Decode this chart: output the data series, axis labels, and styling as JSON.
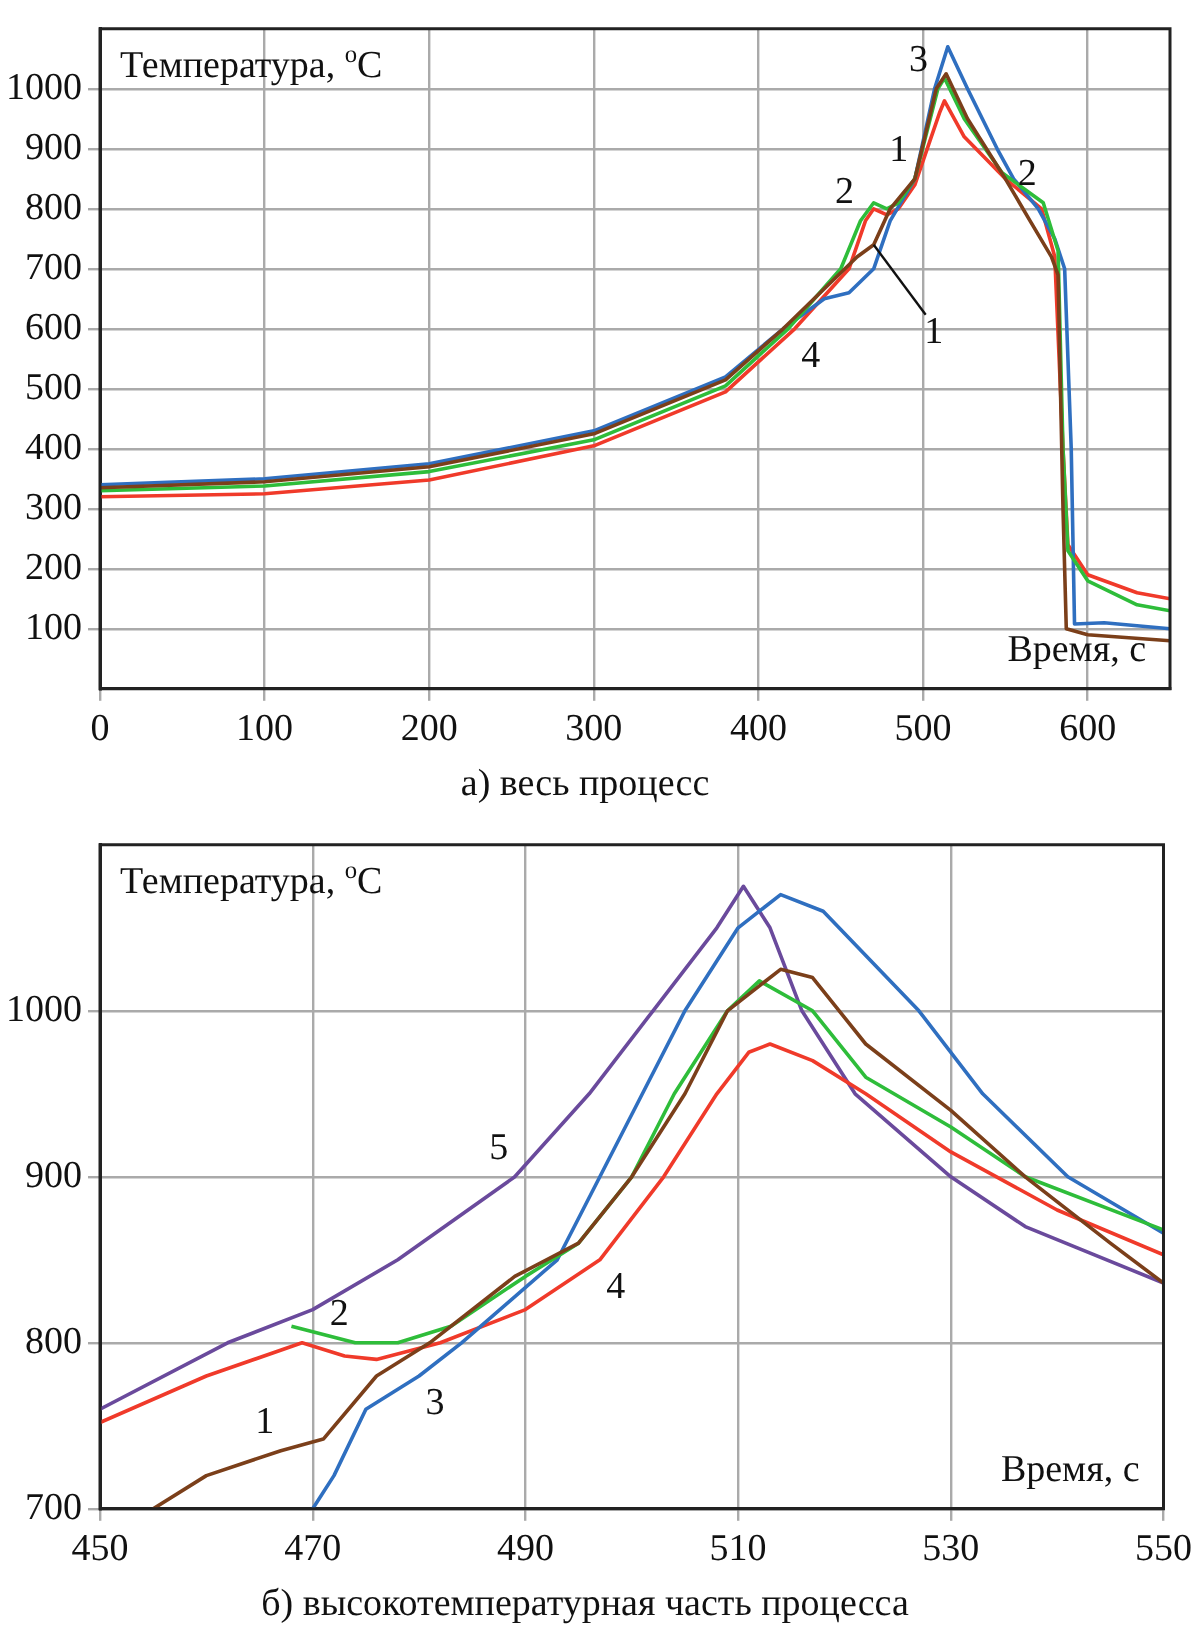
{
  "chart_data": [
    {
      "type": "line",
      "title": "а) весь процесс",
      "xlabel": "Время, с",
      "ylabel": "Температура, $^{o}$C",
      "xlim": [
        0,
        650
      ],
      "xticks": [
        0,
        100,
        200,
        300,
        400,
        500,
        600
      ],
      "ylim": [
        0,
        1100
      ],
      "yticks": [
        100,
        200,
        300,
        400,
        500,
        600,
        700,
        800,
        900,
        1000
      ],
      "grid": true,
      "legend": false,
      "marker": "none",
      "line_style": "solid",
      "series": [
        {
          "color": "#7b3f1a",
          "x": [
            0,
            100,
            200,
            300,
            380,
            415,
            430,
            445,
            460,
            470,
            480,
            495,
            508,
            514,
            527,
            550,
            565,
            578,
            582,
            585,
            587,
            600,
            650
          ],
          "values": [
            335,
            345,
            370,
            425,
            515,
            600,
            640,
            680,
            720,
            740,
            800,
            850,
            1000,
            1025,
            950,
            850,
            780,
            720,
            690,
            300,
            100,
            90,
            80
          ]
        },
        {
          "color": "#2ebd3a",
          "x": [
            0,
            100,
            200,
            300,
            380,
            418,
            450,
            462,
            470,
            478,
            485,
            495,
            509,
            513,
            525,
            548,
            573,
            582,
            585,
            588,
            600,
            630,
            650
          ],
          "values": [
            330,
            338,
            362,
            415,
            505,
            600,
            700,
            780,
            810,
            800,
            810,
            850,
            1000,
            1018,
            950,
            860,
            810,
            730,
            400,
            230,
            180,
            140,
            130
          ]
        },
        {
          "color": "#2f6fc0",
          "x": [
            0,
            100,
            200,
            300,
            380,
            415,
            440,
            455,
            470,
            480,
            495,
            507,
            515,
            527,
            545,
            555,
            570,
            580,
            586,
            590,
            592,
            610,
            650
          ],
          "values": [
            340,
            350,
            375,
            430,
            520,
            600,
            650,
            660,
            700,
            780,
            850,
            1000,
            1070,
            1000,
            900,
            850,
            800,
            750,
            700,
            400,
            108,
            110,
            100
          ]
        },
        {
          "color": "#f03a2a",
          "x": [
            0,
            100,
            200,
            300,
            380,
            422,
            455,
            465,
            470,
            478,
            485,
            495,
            510,
            513,
            525,
            550,
            572,
            580,
            585,
            588,
            600,
            630,
            650
          ],
          "values": [
            320,
            325,
            348,
            405,
            495,
            600,
            700,
            780,
            800,
            790,
            800,
            840,
            960,
            980,
            920,
            850,
            800,
            720,
            400,
            240,
            190,
            160,
            150
          ]
        }
      ],
      "annotations": [
        {
          "text": "3",
          "x": 507,
          "y": 1000
        },
        {
          "text": "1",
          "x": 495,
          "y": 850
        },
        {
          "text": "2",
          "x": 462,
          "y": 780
        },
        {
          "text": "4",
          "x": 422,
          "y": 600
        },
        {
          "text": "2",
          "x": 573,
          "y": 810
        },
        {
          "text": "1",
          "x": 470,
          "y": 740
        }
      ]
    },
    {
      "type": "line",
      "title": "б) высокотемпературная часть процесса",
      "xlabel": "Время, с",
      "ylabel": "Температура, $^{o}$C",
      "xlim": [
        450,
        550
      ],
      "xticks": [
        450,
        470,
        490,
        510,
        530,
        550
      ],
      "ylim": [
        700,
        1100
      ],
      "yticks": [
        700,
        800,
        900,
        1000
      ],
      "grid": true,
      "legend": false,
      "marker": "none",
      "line_style": "solid",
      "series": [
        {
          "color": "#7b3f1a",
          "x": [
            455,
            460,
            467,
            471,
            476,
            481,
            489,
            495,
            500,
            505,
            509,
            514,
            517,
            522,
            530,
            537,
            545,
            550
          ],
          "values": [
            700,
            720,
            735,
            742,
            780,
            800,
            840,
            860,
            900,
            950,
            1000,
            1025,
            1020,
            980,
            940,
            900,
            860,
            836
          ]
        },
        {
          "color": "#2ebd3a",
          "x": [
            468,
            474,
            478,
            483,
            490,
            495,
            500,
            504,
            509,
            512,
            517,
            522,
            530,
            537,
            550
          ],
          "values": [
            810,
            800,
            800,
            810,
            840,
            860,
            900,
            950,
            1000,
            1018,
            1000,
            960,
            930,
            900,
            868
          ]
        },
        {
          "color": "#2f6fc0",
          "x": [
            470,
            472,
            475,
            480,
            484,
            493,
            497,
            501,
            505,
            510,
            514,
            518,
            527,
            533,
            541,
            550
          ],
          "values": [
            700,
            720,
            760,
            780,
            800,
            850,
            900,
            950,
            1000,
            1050,
            1070,
            1060,
            1000,
            950,
            900,
            866
          ]
        },
        {
          "color": "#f03a2a",
          "x": [
            450,
            460,
            469,
            473,
            476,
            482,
            490,
            497,
            503,
            508,
            511,
            513,
            517,
            522,
            530,
            540,
            550
          ],
          "values": [
            752,
            780,
            800,
            792,
            790,
            800,
            820,
            850,
            900,
            950,
            975,
            980,
            970,
            950,
            915,
            880,
            853
          ]
        },
        {
          "color": "#6a4a9c",
          "x": [
            450,
            462,
            470,
            478,
            489,
            496,
            502,
            508,
            510.5,
            513,
            516,
            521,
            530,
            537,
            550
          ],
          "values": [
            760,
            800,
            820,
            850,
            900,
            950,
            1000,
            1050,
            1075,
            1050,
            1000,
            950,
            900,
            870,
            836
          ]
        }
      ],
      "annotations": [
        {
          "text": "5",
          "x": 489,
          "y": 900
        },
        {
          "text": "2",
          "x": 474,
          "y": 800
        },
        {
          "text": "1",
          "x": 467,
          "y": 735
        },
        {
          "text": "3",
          "x": 480,
          "y": 780
        },
        {
          "text": "4",
          "x": 497,
          "y": 850
        }
      ]
    }
  ]
}
